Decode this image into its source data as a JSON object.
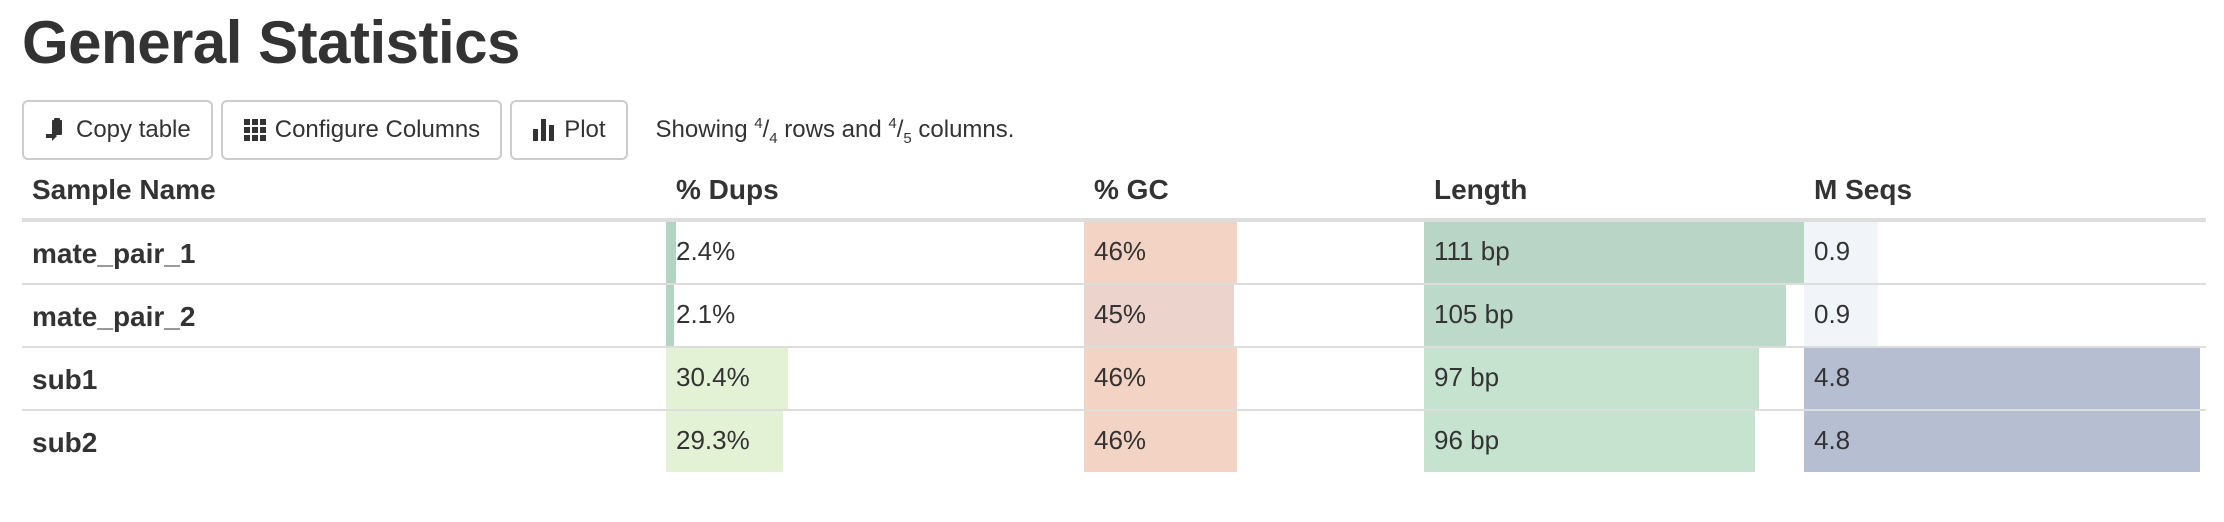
{
  "title": "General Statistics",
  "toolbar": {
    "copy_label": "Copy table",
    "configure_label": "Configure Columns",
    "plot_label": "Plot",
    "showing_prefix": "Showing ",
    "rows_shown": "4",
    "rows_total": "4",
    "rows_suffix": " rows and ",
    "cols_shown": "4",
    "cols_total": "5",
    "cols_suffix": " columns."
  },
  "table": {
    "headers": {
      "sample": "Sample Name",
      "dups": "% Dups",
      "gc": "% GC",
      "length": "Length",
      "mseqs": "M Seqs"
    },
    "rows": [
      {
        "name": "mate_pair_1",
        "dups": {
          "text": "2.4%",
          "value": 2.4
        },
        "gc": {
          "text": "46%",
          "value": 46
        },
        "length": {
          "text": "111 bp",
          "value": 111
        },
        "mseqs": {
          "text": "0.9",
          "value": 0.9
        }
      },
      {
        "name": "mate_pair_2",
        "dups": {
          "text": "2.1%",
          "value": 2.1
        },
        "gc": {
          "text": "45%",
          "value": 45
        },
        "length": {
          "text": "105 bp",
          "value": 105
        },
        "mseqs": {
          "text": "0.9",
          "value": 0.9
        }
      },
      {
        "name": "sub1",
        "dups": {
          "text": "30.4%",
          "value": 30.4
        },
        "gc": {
          "text": "46%",
          "value": 46
        },
        "length": {
          "text": "97 bp",
          "value": 97
        },
        "mseqs": {
          "text": "4.8",
          "value": 4.8
        }
      },
      {
        "name": "sub2",
        "dups": {
          "text": "29.3%",
          "value": 29.3
        },
        "gc": {
          "text": "46%",
          "value": 46
        },
        "length": {
          "text": "96 bp",
          "value": 96
        },
        "mseqs": {
          "text": "4.8",
          "value": 4.8
        }
      }
    ],
    "bar_colors": {
      "dups": [
        "#b3d4c3",
        "#b3d4c3",
        "#e3f1d5",
        "#e3f1d5"
      ],
      "gc": [
        "#f2d3c4",
        "#ecd4cd",
        "#f2d3c4",
        "#f2d3c4"
      ],
      "length": [
        "#b8d5c6",
        "#bcd9ca",
        "#c6e3d0",
        "#c6e3d0"
      ],
      "mseqs": [
        "#f1f4f9",
        "#f1f4f9",
        "#b6bed2",
        "#b6bed2"
      ]
    }
  }
}
